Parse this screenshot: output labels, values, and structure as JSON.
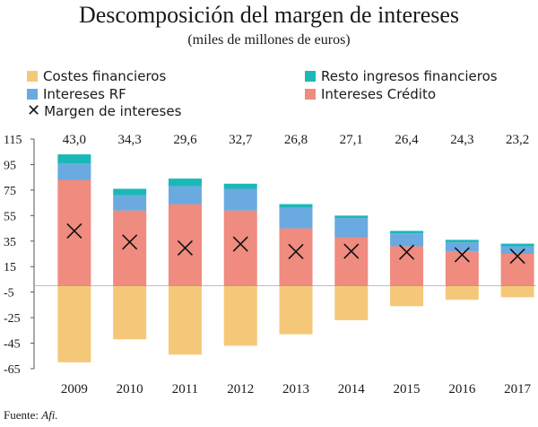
{
  "title": "Descomposición del margen de intereses",
  "subtitle": "(miles de millones de euros)",
  "legend": [
    {
      "label": "Costes financieros",
      "color": "#f5c879",
      "kind": "swatch"
    },
    {
      "label": "Resto ingresos financieros",
      "color": "#1bb8b8",
      "kind": "swatch"
    },
    {
      "label": "Intereses RF",
      "color": "#6aaae0",
      "kind": "swatch"
    },
    {
      "label": "Intereses Crédito",
      "color": "#ef8b7f",
      "kind": "swatch"
    },
    {
      "label": "Margen de intereses",
      "kind": "x-marker"
    }
  ],
  "source_prefix": "Fuente: ",
  "source_name": "Afi.",
  "chart_data": {
    "type": "bar",
    "stacked": true,
    "categories": [
      "2009",
      "2010",
      "2011",
      "2012",
      "2013",
      "2014",
      "2015",
      "2016",
      "2017"
    ],
    "series": [
      {
        "name": "Intereses Crédito",
        "color": "#ef8b7f",
        "values": [
          83,
          59,
          64,
          59,
          45,
          38,
          31,
          27,
          25
        ]
      },
      {
        "name": "Intereses RF",
        "color": "#6aaae0",
        "values": [
          13,
          12,
          14,
          17,
          16,
          15,
          10,
          7,
          6
        ]
      },
      {
        "name": "Resto ingresos financieros",
        "color": "#1bb8b8",
        "values": [
          7,
          5,
          6,
          4,
          3,
          2,
          2,
          2,
          2
        ]
      },
      {
        "name": "Costes financieros",
        "color": "#f5c879",
        "values": [
          -60,
          -42,
          -54,
          -47,
          -38,
          -27,
          -16,
          -11,
          -9
        ]
      }
    ],
    "margin_series": {
      "name": "Margen de intereses",
      "values": [
        43.0,
        34.3,
        29.6,
        32.7,
        26.8,
        27.1,
        26.4,
        24.3,
        23.2
      ]
    },
    "top_labels": [
      "43,0",
      "34,3",
      "29,6",
      "32,7",
      "26,8",
      "27,1",
      "26,4",
      "24,3",
      "23,2"
    ],
    "yticks": [
      115,
      95,
      75,
      55,
      35,
      15,
      -5,
      -25,
      -45,
      -65
    ],
    "ylim": [
      -65,
      115
    ],
    "grid": false
  }
}
